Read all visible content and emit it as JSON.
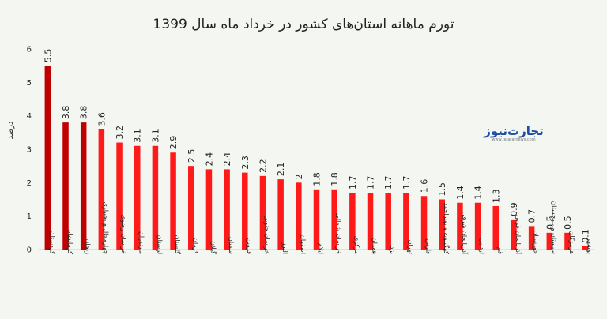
{
  "chart_data": {
    "type": "bar",
    "title": "تورم ماهانه استان‌های کشور در خرداد ماه سال 1399",
    "ylabel": "درصد",
    "xlabel": "",
    "ylim": [
      0,
      6
    ],
    "yticks": [
      0,
      1,
      2,
      3,
      4,
      5,
      6
    ],
    "grid": false,
    "categories": [
      "کردستان",
      "کرمانشاه",
      "زنجان",
      "چهارمحال و بختیاری",
      "خراسان رضوی",
      "مازندران",
      "لرستان",
      "گلستان",
      "کرمان",
      "گیلان",
      "سمنان",
      "قزوین",
      "خراسان جنوبی",
      "البرز",
      "اصفهان",
      "ایلام",
      "خراسان شمالی",
      "مرکزی",
      "همدان",
      "یزد",
      "تهران",
      "فارس",
      "کهگیلویه و بویراحمد",
      "آذربایجان شرقی",
      "اردبیل",
      "قم",
      "آذربایجان غربی",
      "خوزستان",
      "سیستان و بلوچستان",
      "هرمزگان",
      "بوشهر"
    ],
    "values": [
      5.5,
      3.8,
      3.8,
      3.6,
      3.2,
      3.1,
      3.1,
      2.9,
      2.5,
      2.4,
      2.4,
      2.3,
      2.2,
      2.1,
      2,
      1.8,
      1.8,
      1.7,
      1.7,
      1.7,
      1.7,
      1.6,
      1.5,
      1.4,
      1.4,
      1.3,
      0.9,
      0.7,
      0.5,
      0.5,
      0.1
    ],
    "value_labels": [
      "5.5",
      "3.8",
      "3.8",
      "3.6",
      "3.2",
      "3.1",
      "3.1",
      "2.9",
      "2.5",
      "2.4",
      "2.4",
      "2.3",
      "2.2",
      "2.1",
      "2",
      "1.8",
      "1.8",
      "1.7",
      "1.7",
      "1.7",
      "1.7",
      "1.6",
      "1.5",
      "1.4",
      "1.4",
      "1.3",
      "0.9",
      "0.7",
      "0.5",
      "0.5",
      "0.1"
    ],
    "highlighted_count": 3,
    "colors": {
      "bar": "#ff1a1a",
      "bar_highlight": "#c00000",
      "axis": "#cfcfcf",
      "background": "#f3f6f1"
    }
  },
  "logo": {
    "name": "تجارت‌نیوز",
    "url": "www.tejaratnews.com"
  }
}
